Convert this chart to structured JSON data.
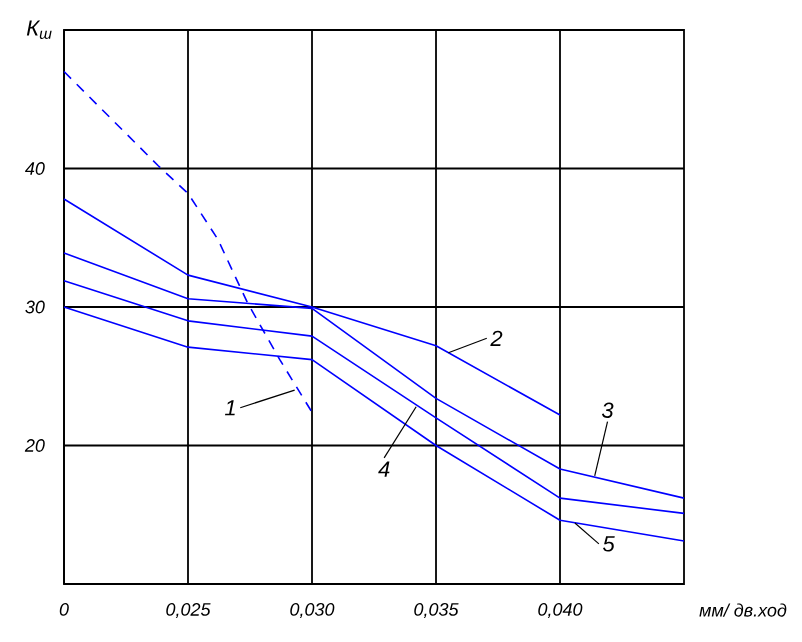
{
  "chart_data": {
    "type": "line",
    "ylabel": "К$_{ш}$",
    "xlabel": "мм/ дв.ход",
    "xlim": [
      0.02,
      0.045
    ],
    "ylim": [
      10,
      50
    ],
    "xticks": [
      {
        "value": 0.02,
        "label": "0"
      },
      {
        "value": 0.025,
        "label": "0,025"
      },
      {
        "value": 0.03,
        "label": "0,030"
      },
      {
        "value": 0.035,
        "label": "0,035"
      },
      {
        "value": 0.04,
        "label": "0,040"
      }
    ],
    "yticks": [
      20,
      30,
      40
    ],
    "grid": true,
    "marker": "none",
    "series": [
      {
        "color": "#0000ff",
        "line_style": "dashed",
        "x": [
          0.02,
          0.0238,
          0.025,
          0.0262,
          0.0274,
          0.0287,
          0.03
        ],
        "values": [
          47.0,
          40.2,
          38.2,
          34.9,
          30.3,
          26.2,
          22.4
        ]
      },
      {
        "color": "#0000ff",
        "line_style": "solid",
        "x": [
          0.02,
          0.025,
          0.03,
          0.035,
          0.04
        ],
        "values": [
          37.8,
          32.3,
          30.0,
          27.2,
          22.2
        ]
      },
      {
        "color": "#0000ff",
        "line_style": "solid",
        "x": [
          0.02,
          0.025,
          0.03,
          0.035,
          0.04,
          0.045
        ],
        "values": [
          33.9,
          30.6,
          29.9,
          23.4,
          18.3,
          16.2
        ]
      },
      {
        "color": "#0000ff",
        "line_style": "solid",
        "x": [
          0.02,
          0.025,
          0.03,
          0.035,
          0.04,
          0.045
        ],
        "values": [
          31.9,
          29.0,
          27.9,
          22.0,
          16.2,
          15.1
        ]
      },
      {
        "color": "#0000ff",
        "line_style": "solid",
        "x": [
          0.02,
          0.025,
          0.03,
          0.035,
          0.04,
          0.045
        ],
        "values": [
          30.0,
          27.1,
          26.2,
          20.0,
          14.6,
          13.1
        ]
      }
    ],
    "annotations": [
      {
        "text": "1",
        "x": 0.0293,
        "y": 24.0
      },
      {
        "text": "2",
        "x": 0.0355,
        "y": 26.7
      },
      {
        "text": "3",
        "x": 0.0414,
        "y": 17.8
      },
      {
        "text": "4",
        "x": 0.0342,
        "y": 22.8
      },
      {
        "text": "5",
        "x": 0.0406,
        "y": 14.4
      }
    ]
  }
}
